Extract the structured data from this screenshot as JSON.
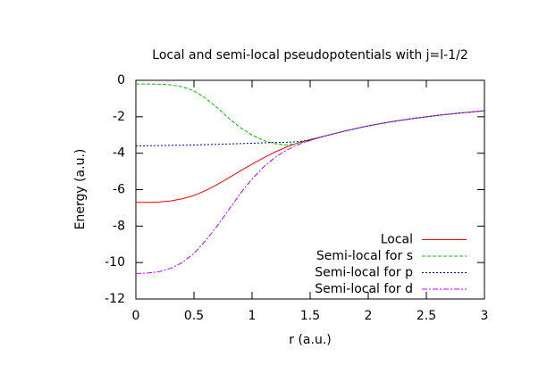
{
  "chart_data": {
    "type": "line",
    "title": "Local and semi-local pseudopotentials with j=l-1/2",
    "xlabel": "r (a.u.)",
    "ylabel": "Energy (a.u.)",
    "x": [
      0,
      0.1,
      0.2,
      0.3,
      0.4,
      0.5,
      0.6,
      0.7,
      0.8,
      0.9,
      1.0,
      1.1,
      1.2,
      1.3,
      1.4,
      1.5,
      1.6,
      1.8,
      2.0,
      2.2,
      2.4,
      2.6,
      2.8,
      3.0
    ],
    "series": [
      {
        "name": "Local",
        "color": "#ff0000",
        "values": [
          -6.7,
          -6.7,
          -6.68,
          -6.62,
          -6.5,
          -6.32,
          -6.05,
          -5.72,
          -5.35,
          -4.97,
          -4.6,
          -4.25,
          -3.93,
          -3.65,
          -3.42,
          -3.25,
          -3.1,
          -2.78,
          -2.5,
          -2.27,
          -2.08,
          -1.92,
          -1.79,
          -1.67
        ]
      },
      {
        "name": "Semi-local for s",
        "color": "#00c000",
        "values": [
          -0.2,
          -0.2,
          -0.21,
          -0.25,
          -0.35,
          -0.58,
          -0.98,
          -1.5,
          -2.08,
          -2.6,
          -3.0,
          -3.3,
          -3.48,
          -3.55,
          -3.45,
          -3.3,
          -3.1,
          -2.78,
          -2.5,
          -2.27,
          -2.08,
          -1.92,
          -1.79,
          -1.67
        ]
      },
      {
        "name": "Semi-local for p",
        "color": "#0000a0",
        "values": [
          -3.6,
          -3.59,
          -3.58,
          -3.57,
          -3.56,
          -3.55,
          -3.53,
          -3.51,
          -3.49,
          -3.47,
          -3.45,
          -3.43,
          -3.41,
          -3.4,
          -3.36,
          -3.28,
          -3.1,
          -2.78,
          -2.5,
          -2.27,
          -2.08,
          -1.92,
          -1.79,
          -1.67
        ]
      },
      {
        "name": "Semi-local for d",
        "color": "#c000ff",
        "values": [
          -10.6,
          -10.58,
          -10.5,
          -10.32,
          -10.0,
          -9.5,
          -8.8,
          -8.0,
          -7.1,
          -6.2,
          -5.42,
          -4.75,
          -4.22,
          -3.82,
          -3.52,
          -3.3,
          -3.1,
          -2.78,
          -2.5,
          -2.27,
          -2.08,
          -1.92,
          -1.79,
          -1.67
        ]
      }
    ],
    "xlim": [
      0,
      3
    ],
    "xticks": [
      0,
      0.5,
      1,
      1.5,
      2,
      2.5,
      3
    ],
    "ylim": [
      -12,
      0
    ],
    "yticks": [
      -12,
      -10,
      -8,
      -6,
      -4,
      -2,
      0
    ],
    "legend": "bottom-right"
  }
}
